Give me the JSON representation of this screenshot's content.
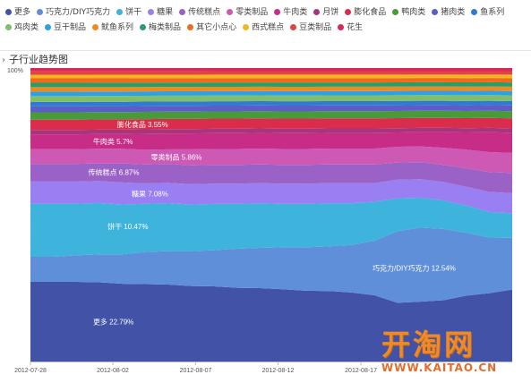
{
  "legend": [
    {
      "label": "更多",
      "color": "#4252a6"
    },
    {
      "label": "巧克力/DIY巧克力",
      "color": "#5f8fd8"
    },
    {
      "label": "饼干",
      "color": "#3eb3dc"
    },
    {
      "label": "糖果",
      "color": "#9a7ff2"
    },
    {
      "label": "传统糕点",
      "color": "#9a62c6"
    },
    {
      "label": "零类制品",
      "color": "#cd59b4"
    },
    {
      "label": "牛肉类",
      "color": "#c72d86"
    },
    {
      "label": "月饼",
      "color": "#a8347c"
    },
    {
      "label": "膨化食品",
      "color": "#d92d4b"
    },
    {
      "label": "鸭肉类",
      "color": "#4a9a3a"
    },
    {
      "label": "猪肉类",
      "color": "#5b5fc5"
    },
    {
      "label": "鱼系列",
      "color": "#2f7bd2"
    },
    {
      "label": "鸡肉类",
      "color": "#7fbf6a"
    },
    {
      "label": "豆干制品",
      "color": "#2ea0e6"
    },
    {
      "label": "鱿鱼系列",
      "color": "#f08a1e"
    },
    {
      "label": "梅类制品",
      "color": "#26a06b"
    },
    {
      "label": "其它小点心",
      "color": "#f26a1b"
    },
    {
      "label": "西式糕点",
      "color": "#f2b61e"
    },
    {
      "label": "豆类制品",
      "color": "#e04444"
    },
    {
      "label": "花生",
      "color": "#d9285a"
    }
  ],
  "section_title": "子行业趋势图",
  "watermark": {
    "logo": "开淘网",
    "url": "WWW.KAITAO.CN"
  },
  "chart_data": {
    "type": "area",
    "stacked": true,
    "normalized": true,
    "ylim": [
      0,
      100
    ],
    "y_tick_label": "100%",
    "x_tick_labels": [
      "2012-07-28",
      "2012-08-02",
      "2012-08-07",
      "2012-08-12",
      "2012-08-17"
    ],
    "xlabel": "",
    "ylabel": "",
    "grid": false,
    "legend_position": "top",
    "series": [
      {
        "name": "更多",
        "color": "#4252a6",
        "label": "更多 22.79%",
        "values": [
          27,
          27,
          27,
          27,
          26.5,
          26.5,
          26.5,
          26,
          26,
          25.5,
          25.5,
          25,
          24.5,
          24.5,
          24,
          23,
          20.5,
          21,
          21.5,
          23,
          24,
          25
        ]
      },
      {
        "name": "巧克力/DIY巧克力",
        "color": "#5f8fd8",
        "label": "巧克力/DIY巧克力 12.54%",
        "values": [
          8.5,
          8.5,
          9,
          9.5,
          10,
          11,
          11.5,
          12,
          12.5,
          13.5,
          14,
          14.5,
          15,
          15.5,
          16.5,
          19,
          25,
          26,
          25,
          22,
          19.5,
          18
        ]
      },
      {
        "name": "饼干",
        "color": "#3eb3dc",
        "label": "饼干 10.47%",
        "values": [
          18,
          18,
          17.5,
          17.5,
          17,
          16.5,
          16.5,
          16,
          16,
          15.5,
          15.5,
          15,
          15,
          15,
          14.5,
          13.5,
          11.5,
          10.5,
          10,
          9.5,
          9,
          8.5
        ]
      },
      {
        "name": "糖果",
        "color": "#9a7ff2",
        "label": "糖果 7.08%",
        "values": [
          7.5,
          7.5,
          7.5,
          7.5,
          7.5,
          7,
          7,
          7,
          7,
          7,
          7,
          7,
          7,
          7,
          7,
          6.5,
          6.5,
          6.5,
          6.5,
          6.5,
          7,
          7
        ]
      },
      {
        "name": "传统糕点",
        "color": "#9a62c6",
        "label": "传统糕点 6.87%",
        "values": [
          6,
          6,
          6,
          6,
          6.5,
          6.5,
          6.5,
          6.5,
          6.5,
          6.5,
          6.5,
          6.5,
          6.5,
          6.5,
          6.5,
          6.5,
          6,
          6,
          6,
          6.5,
          7,
          7
        ]
      },
      {
        "name": "零类制品",
        "color": "#cd59b4",
        "label": "零类制品 5.86%",
        "values": [
          5,
          5,
          5,
          5,
          5,
          5,
          5,
          5.5,
          5.5,
          5.5,
          5.5,
          5.5,
          5.5,
          5.5,
          5.5,
          5.5,
          5.5,
          5.5,
          6,
          6.5,
          7,
          7
        ]
      },
      {
        "name": "牛肉类",
        "color": "#c72d86",
        "label": "牛肉类 5.7%",
        "values": [
          5,
          5,
          5,
          5,
          5,
          5.5,
          5.5,
          5.5,
          5.5,
          5.5,
          5.5,
          5.5,
          5.5,
          5.5,
          5.5,
          5.5,
          5,
          5,
          5.5,
          6,
          7,
          7
        ]
      },
      {
        "name": "月饼",
        "color": "#a8347c",
        "values": [
          1.5,
          1.5,
          1.5,
          1.5,
          1.5,
          1.5,
          1.5,
          1.5,
          1.5,
          1.5,
          1.5,
          1.5,
          1.5,
          1.5,
          1.5,
          1.5,
          1.5,
          1.5,
          1.5,
          1.5,
          1.5,
          1.5
        ]
      },
      {
        "name": "膨化食品",
        "color": "#d92d4b",
        "label": "膨化食品 3.55%",
        "values": [
          3.5,
          3.5,
          3.5,
          3.5,
          3.5,
          3.5,
          3.5,
          3.5,
          3.5,
          3.5,
          3.5,
          3.5,
          3.5,
          3.5,
          3.5,
          3.5,
          3.5,
          3.5,
          3.5,
          3.5,
          3.5,
          3.5
        ]
      },
      {
        "name": "鸭肉类",
        "color": "#4a9a3a",
        "values": [
          2.5,
          2.5,
          2.5,
          2.5,
          2.5,
          2.5,
          2.5,
          2.5,
          2.5,
          2.5,
          2.5,
          2.5,
          2.5,
          2.5,
          2.5,
          2.5,
          2.5,
          2.5,
          2.5,
          2.5,
          2.5,
          2.5
        ]
      },
      {
        "name": "猪肉类",
        "color": "#5b5fc5",
        "values": [
          2,
          2,
          2,
          2,
          2,
          2,
          2,
          2,
          2,
          2,
          2,
          2,
          2,
          2,
          2,
          2,
          2,
          2,
          2,
          2,
          2,
          2
        ]
      },
      {
        "name": "鱼系列",
        "color": "#2f7bd2",
        "values": [
          1.5,
          1.5,
          1.5,
          1.5,
          1.5,
          1.5,
          1.5,
          1.5,
          1.5,
          1.5,
          1.5,
          1.5,
          1.5,
          1.5,
          1.5,
          1.5,
          1.5,
          1.5,
          1.5,
          1.5,
          1.5,
          1.5
        ]
      },
      {
        "name": "鸡肉类",
        "color": "#7fbf6a",
        "values": [
          2,
          2,
          2,
          2,
          2,
          2,
          2,
          2,
          2,
          2,
          2,
          2,
          2,
          2,
          2,
          2,
          2,
          2,
          2,
          2,
          2,
          2
        ]
      },
      {
        "name": "豆干制品",
        "color": "#2ea0e6",
        "values": [
          1.5,
          1.5,
          1.5,
          1.5,
          1.5,
          1.5,
          1.5,
          1.5,
          1.5,
          1.5,
          1.5,
          1.5,
          1.5,
          1.5,
          1.5,
          1.5,
          1.5,
          1.5,
          1.5,
          1.5,
          1.5,
          1.5
        ]
      },
      {
        "name": "鱿鱼系列",
        "color": "#f08a1e",
        "values": [
          1.5,
          1.5,
          1.5,
          1.5,
          1.5,
          1.5,
          1.5,
          1.5,
          1.5,
          1.5,
          1.5,
          1.5,
          1.5,
          1.5,
          1.5,
          1.5,
          1.5,
          1.5,
          1.5,
          1.5,
          1.5,
          1.5
        ]
      },
      {
        "name": "梅类制品",
        "color": "#26a06b",
        "values": [
          1.5,
          1.5,
          1.5,
          1.5,
          1.5,
          1.5,
          1.5,
          1.5,
          1.5,
          1.5,
          1.5,
          1.5,
          1.5,
          1.5,
          1.5,
          1.5,
          1.5,
          1.5,
          1.5,
          1.5,
          1.5,
          1.5
        ]
      },
      {
        "name": "其它小点心",
        "color": "#f26a1b",
        "values": [
          1.5,
          1.5,
          1.5,
          1.5,
          1.5,
          1.5,
          1.5,
          1.5,
          1.5,
          1.5,
          1.5,
          1.5,
          1.5,
          1.5,
          1.5,
          1.5,
          1.5,
          1.5,
          1.5,
          1.5,
          1.5,
          1.5
        ]
      },
      {
        "name": "西式糕点",
        "color": "#f2b61e",
        "values": [
          1.2,
          1.2,
          1.2,
          1.2,
          1.2,
          1.2,
          1.2,
          1.2,
          1.2,
          1.2,
          1.2,
          1.2,
          1.2,
          1.2,
          1.2,
          1.2,
          1.2,
          1.2,
          1.2,
          1.2,
          1.2,
          1.2
        ]
      },
      {
        "name": "豆类制品",
        "color": "#e04444",
        "values": [
          1.2,
          1.2,
          1.2,
          1.2,
          1.2,
          1.2,
          1.2,
          1.2,
          1.2,
          1.2,
          1.2,
          1.2,
          1.2,
          1.2,
          1.2,
          1.2,
          1.2,
          1.2,
          1.2,
          1.2,
          1.2,
          1.2
        ]
      },
      {
        "name": "花生",
        "color": "#d9285a",
        "values": [
          1.1,
          1.1,
          1.1,
          1.1,
          1.1,
          1.1,
          1.1,
          1.1,
          1.1,
          1.1,
          1.1,
          1.1,
          1.1,
          1.1,
          1.1,
          1.1,
          1.1,
          1.1,
          1.1,
          1.1,
          1.1,
          1.1
        ]
      }
    ]
  }
}
